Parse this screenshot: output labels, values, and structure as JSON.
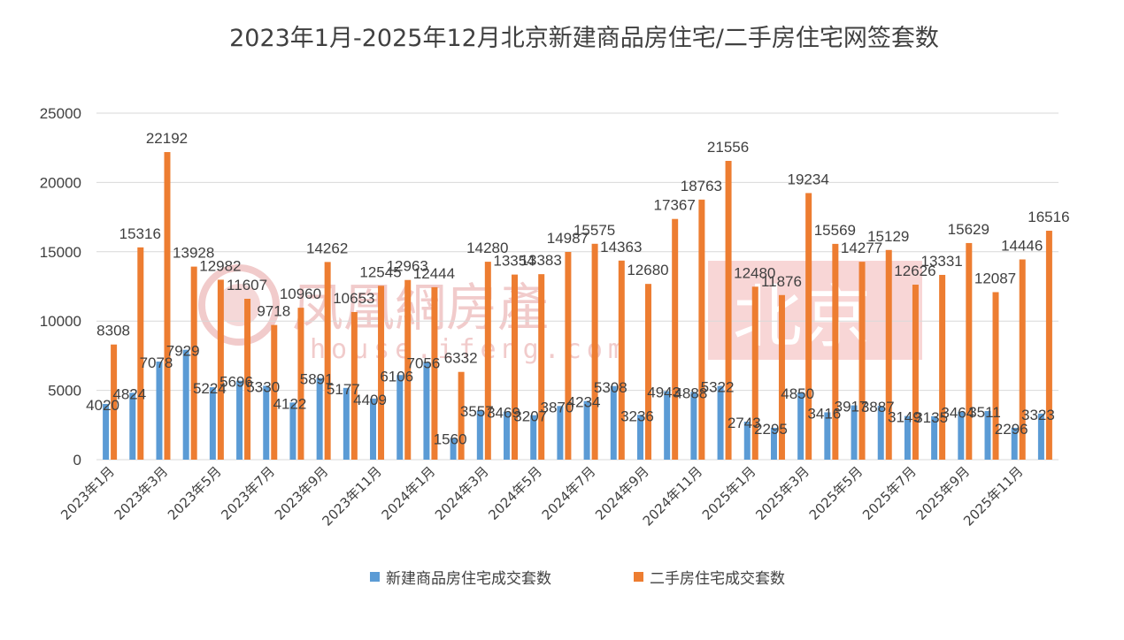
{
  "chart_data": {
    "type": "bar",
    "title": "2023年1月-2025年12月北京新建商品房住宅/二手房住宅网签套数",
    "ylim": [
      0,
      25000
    ],
    "yticks": [
      "0",
      "5000",
      "10000",
      "15000",
      "20000",
      "25000"
    ],
    "grid": true,
    "legend_position": "bottom",
    "categories": [
      "2023年1月",
      "2023年2月",
      "2023年3月",
      "2023年4月",
      "2023年5月",
      "2023年6月",
      "2023年7月",
      "2023年8月",
      "2023年9月",
      "2023年10月",
      "2023年11月",
      "2023年12月",
      "2024年1月",
      "2024年2月",
      "2024年3月",
      "2024年4月",
      "2024年5月",
      "2024年6月",
      "2024年7月",
      "2024年8月",
      "2024年9月",
      "2024年10月",
      "2024年11月",
      "2024年12月",
      "2025年1月",
      "2025年2月",
      "2025年3月",
      "2025年4月",
      "2025年5月",
      "2025年6月",
      "2025年7月",
      "2025年8月",
      "2025年9月",
      "2025年10月",
      "2025年11月",
      "2025年12月"
    ],
    "visible_tick_labels": [
      "2023年1月",
      "2023年3月",
      "2023年5月",
      "2023年7月",
      "2023年9月",
      "2023年11月",
      "2024年1月",
      "2024年3月",
      "2024年5月",
      "2024年7月",
      "2024年9月",
      "2024年11月",
      "2025年1月",
      "2025年3月",
      "2025年5月",
      "2025年7月",
      "2025年9月",
      "2025年11月"
    ],
    "series": [
      {
        "name": "新建商品房住宅成交套数",
        "color": "#5b9bd5",
        "values": [
          4020,
          4824,
          7078,
          7929,
          5224,
          5696,
          5330,
          4122,
          5891,
          5177,
          4409,
          6106,
          7056,
          1560,
          3557,
          3469,
          3207,
          3870,
          4234,
          5308,
          3236,
          4943,
          4888,
          5322,
          2743,
          2295,
          4850,
          3416,
          3917,
          3887,
          3149,
          3135,
          3464,
          3511,
          2296,
          3323
        ]
      },
      {
        "name": "二手房住宅成交套数",
        "color": "#ed7d31",
        "values": [
          8308,
          15316,
          22192,
          13928,
          12982,
          11607,
          9718,
          10960,
          14262,
          10653,
          12545,
          12963,
          12444,
          6332,
          14280,
          13354,
          13383,
          14987,
          15575,
          14363,
          12680,
          17367,
          18763,
          21556,
          12480,
          11876,
          19234,
          15569,
          14277,
          15129,
          12626,
          13331,
          15629,
          12087,
          14446,
          16516
        ]
      }
    ]
  },
  "watermark": {
    "brand": "凤凰網房產",
    "url": "house.ifeng.com",
    "city": "北京",
    "color": "#e8a0a0"
  }
}
